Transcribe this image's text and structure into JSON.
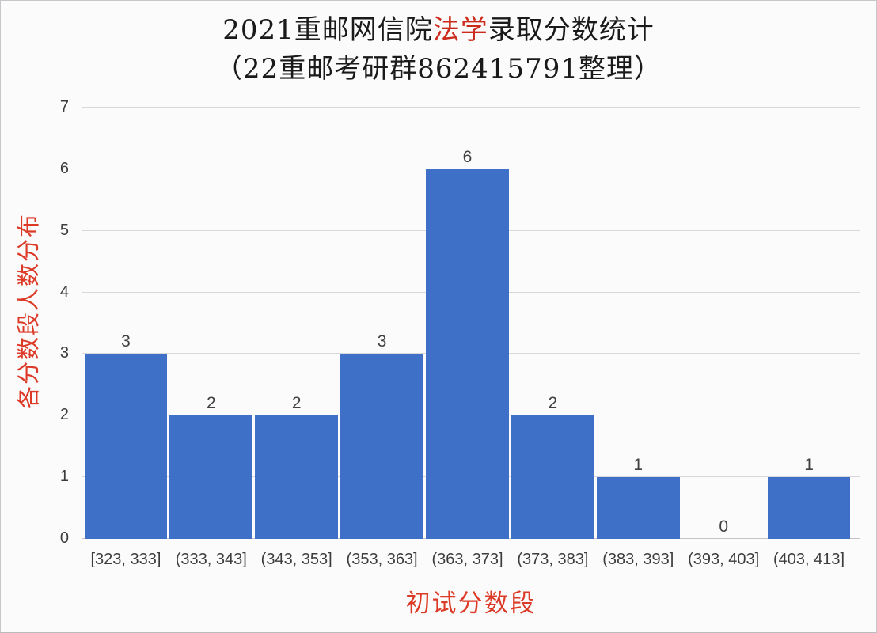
{
  "window": {
    "background": "#fbfbfc",
    "border_color": "#c6c6cb"
  },
  "title": {
    "line1_prefix": "2021重邮网信院",
    "line1_highlight": "法学",
    "line1_suffix": "录取分数统计",
    "line2": "（22重邮考研群862415791整理）",
    "text_color": "#1a1a1a",
    "highlight_color": "#cc2a1a"
  },
  "chart_data": {
    "type": "bar",
    "title": "2021重邮网信院法学录取分数统计（22重邮考研群862415791整理）",
    "categories": [
      "[323, 333]",
      "(333, 343]",
      "(343, 353]",
      "(353, 363]",
      "(363, 373]",
      "(373, 383]",
      "(383, 393]",
      "(393, 403]",
      "(403, 413]"
    ],
    "values": [
      3,
      2,
      2,
      3,
      6,
      2,
      1,
      0,
      1
    ],
    "xlabel": "初试分数段",
    "ylabel": "各分数段人数分布",
    "ylim": [
      0,
      7
    ],
    "ytick_step": 1,
    "yticks": [
      0,
      1,
      2,
      3,
      4,
      5,
      6,
      7
    ],
    "grid": true,
    "legend": false,
    "bar_color": "#3d70c6",
    "gridline_color": "#d8d8dc",
    "axis_line_color": "#c2c2c7",
    "tick_label_color": "#3c3c3c",
    "value_label_color": "#404040",
    "axis_title_color": "#dc3a26"
  }
}
